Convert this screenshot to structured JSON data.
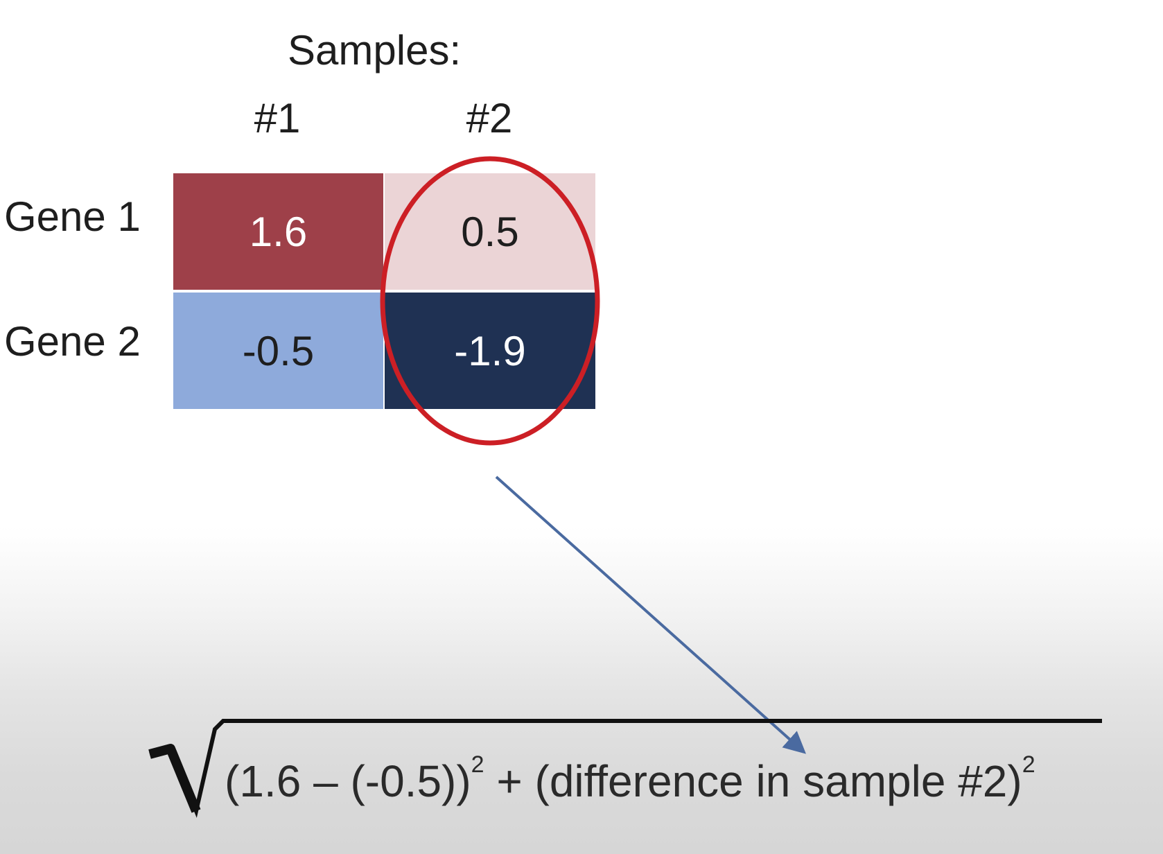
{
  "title": "Samples:",
  "columns": [
    "#1",
    "#2"
  ],
  "rows": [
    "Gene 1",
    "Gene 2"
  ],
  "cells": [
    [
      {
        "value": "1.6",
        "bg": "#9e4049",
        "fg": "#ffffff"
      },
      {
        "value": "0.5",
        "bg": "#ebd4d6",
        "fg": "#1e1e1e"
      }
    ],
    [
      {
        "value": "-0.5",
        "bg": "#8eaadb",
        "fg": "#1e1e1e"
      },
      {
        "value": "-1.9",
        "bg": "#1f3153",
        "fg": "#ffffff"
      }
    ]
  ],
  "highlight_color": "#cc1f25",
  "arrow_color": "#4a6aa0",
  "formula": {
    "part1": "(1.6 – (-0.5))",
    "exp1": "2",
    "plus": " + ",
    "part2": "(difference in sample #2)",
    "exp2": "2"
  }
}
